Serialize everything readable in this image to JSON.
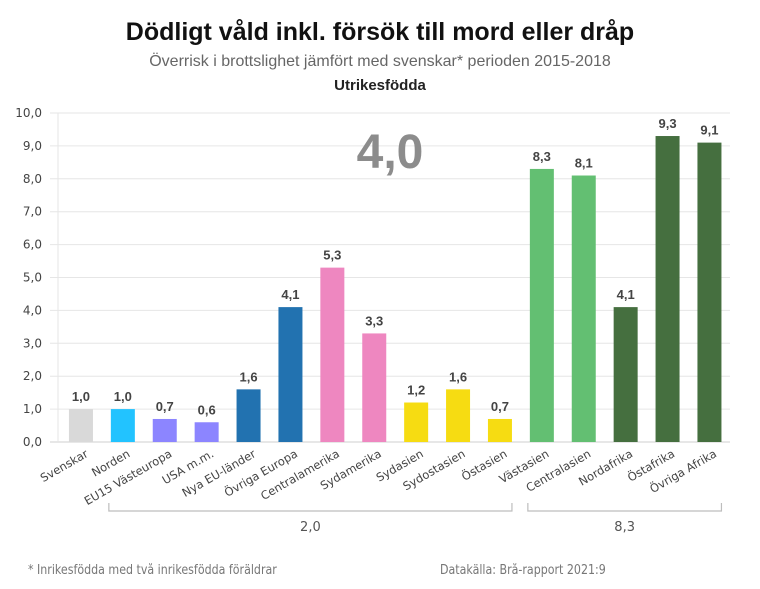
{
  "chart_data": {
    "type": "bar",
    "title": "Dödligt våld inkl. försök till mord eller dråp",
    "subtitle": "Överrisk i brottslighet jämfört med svenskar* perioden 2015-2018",
    "group_title": "Utrikesfödda",
    "overall_label": "4,0",
    "xlabel": "",
    "ylabel": "",
    "ylim": [
      0,
      10
    ],
    "yticks": [
      "0,0",
      "1,0",
      "2,0",
      "3,0",
      "4,0",
      "5,0",
      "6,0",
      "7,0",
      "8,0",
      "9,0",
      "10,0"
    ],
    "grid": true,
    "categories": [
      "Svenskar",
      "Norden",
      "EU15 Västeuropa",
      "USA m.m.",
      "Nya EU-länder",
      "Övriga Europa",
      "Centralamerika",
      "Sydamerika",
      "Sydasien",
      "Sydostasien",
      "Östasien",
      "Västasien",
      "Centralasien",
      "Nordafrika",
      "Östafrika",
      "Övriga Afrika"
    ],
    "values": [
      1.0,
      1.0,
      0.7,
      0.6,
      1.6,
      4.1,
      5.3,
      3.3,
      1.2,
      1.6,
      0.7,
      8.3,
      8.1,
      4.1,
      9.3,
      9.1
    ],
    "value_labels": [
      "1,0",
      "1,0",
      "0,7",
      "0,6",
      "1,6",
      "4,1",
      "5,3",
      "3,3",
      "1,2",
      "1,6",
      "0,7",
      "8,3",
      "8,1",
      "4,1",
      "9,3",
      "9,1"
    ],
    "colors": [
      "#d9d9d9",
      "#22c3ff",
      "#8c85ff",
      "#8c85ff",
      "#2272b0",
      "#2272b0",
      "#ee87c0",
      "#ee87c0",
      "#f6dc12",
      "#f6dc12",
      "#f6dc12",
      "#63bf72",
      "#63bf72",
      "#456f3f",
      "#456f3f",
      "#456f3f"
    ],
    "brackets": [
      {
        "from": 1,
        "to": 10,
        "label": "2,0"
      },
      {
        "from": 11,
        "to": 15,
        "label": "8,3"
      }
    ]
  },
  "footnote": "* Inrikesfödda med två inrikesfödda föräldrar",
  "source": "Datakälla: Brå-rapport 2021:9"
}
